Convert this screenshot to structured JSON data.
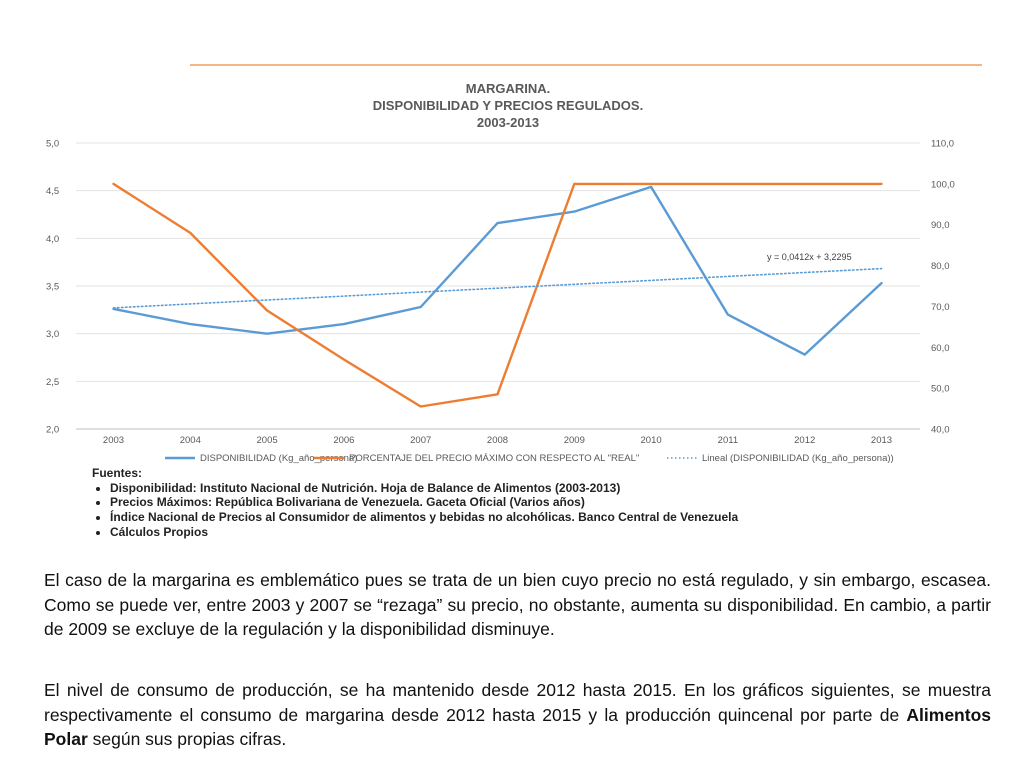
{
  "chart_data": {
    "type": "line",
    "title": [
      "MARGARINA.",
      "DISPONIBILIDAD Y PRECIOS REGULADOS.",
      "2003-2013"
    ],
    "categories": [
      "2003",
      "2004",
      "2005",
      "2006",
      "2007",
      "2008",
      "2009",
      "2010",
      "2011",
      "2012",
      "2013"
    ],
    "y_left": {
      "min": 2.0,
      "max": 5.0,
      "step": 0.5,
      "ticks": [
        "2,0",
        "2,5",
        "3,0",
        "3,5",
        "4,0",
        "4,5",
        "5,0"
      ]
    },
    "y_right": {
      "min": 40.0,
      "max": 110.0,
      "step": 10,
      "ticks": [
        "40,0",
        "50,0",
        "60,0",
        "70,0",
        "80,0",
        "90,0",
        "100,0",
        "110,0"
      ]
    },
    "grid": true,
    "legend_position": "bottom",
    "series": [
      {
        "name": "DISPONIBILIDAD (Kg_año_persona)",
        "axis": "left",
        "color": "#5b9bd5",
        "style": "solid",
        "values": [
          3.26,
          3.1,
          3.0,
          3.1,
          3.28,
          4.16,
          4.28,
          4.54,
          3.2,
          2.78,
          3.53
        ]
      },
      {
        "name": "PORCENTAJE DEL PRECIO MÁXIMO CON RESPECTO AL \"REAL\"",
        "axis": "right",
        "color": "#ed7d31",
        "style": "solid",
        "values": [
          100.0,
          88.0,
          69.0,
          57.0,
          45.5,
          48.5,
          100.0,
          100.0,
          100.0,
          100.0,
          100.0
        ]
      },
      {
        "name": "Lineal (DISPONIBILIDAD (Kg_año_persona))",
        "axis": "left",
        "color": "#5b9bd5",
        "style": "dotted",
        "trend": {
          "slope": 0.0412,
          "intercept": 3.2295
        }
      }
    ],
    "annotation": "y = 0,0412x + 3,2295"
  },
  "sources": {
    "heading": "Fuentes:",
    "items": [
      "Disponibilidad: Instituto Nacional de Nutrición. Hoja de Balance de Alimentos (2003-2013)",
      "Precios Máximos: República Bolivariana de Venezuela. Gaceta Oficial (Varios años)",
      "Índice Nacional de Precios al Consumidor de alimentos y bebidas no alcohólicas. Banco Central de Venezuela",
      "Cálculos Propios"
    ]
  },
  "paragraphs": {
    "p1": "El caso de la margarina es emblemático pues se trata de un bien cuyo precio no está regulado, y sin embargo, escasea. Como se puede ver, entre 2003 y 2007 se “rezaga” su precio, no obstante, aumenta su disponibilidad. En cambio, a partir de 2009 se excluye de la regulación y la disponibilidad disminuye.",
    "p2_before": "El nivel de consumo de producción, se ha mantenido desde 2012 hasta 2015. En los gráficos siguientes, se muestra respectivamente el consumo de margarina desde 2012 hasta 2015 y la producción quincenal por parte de ",
    "p2_bold": "Alimentos Polar",
    "p2_after": " según sus propias cifras."
  }
}
